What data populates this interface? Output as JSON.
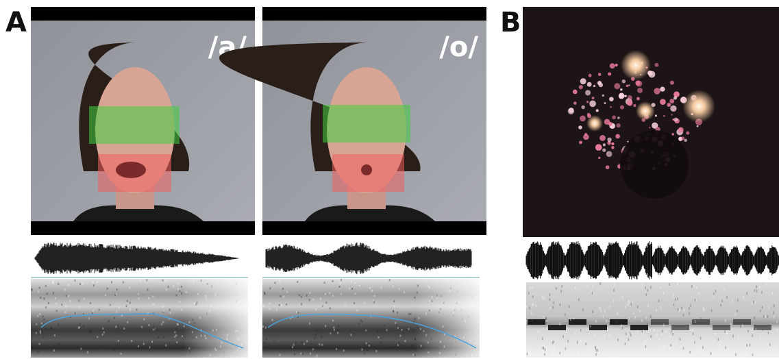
{
  "labels": {
    "panel_a": "A",
    "panel_b": "B"
  },
  "vowels": [
    "/a/",
    "/o/"
  ]
}
